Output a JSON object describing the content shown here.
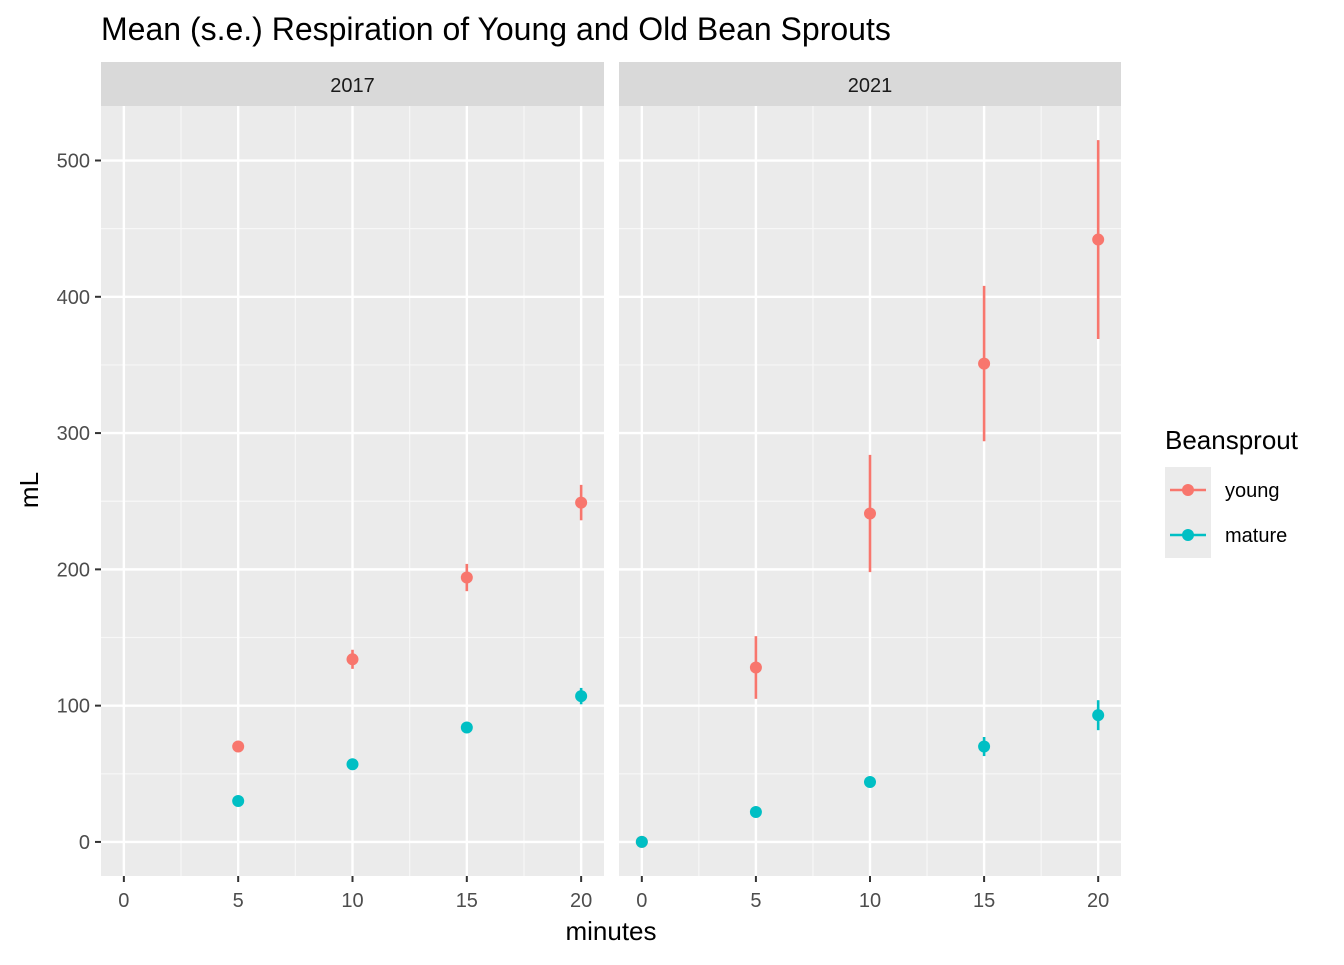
{
  "chart_data": {
    "type": "scatter",
    "title": "Mean (s.e.) Respiration of Young and Old Bean Sprouts",
    "xlabel": "minutes",
    "ylabel": "mL",
    "xlim": [
      -1,
      21
    ],
    "ylim": [
      -25,
      540
    ],
    "x_ticks": [
      0,
      5,
      10,
      15,
      20
    ],
    "y_ticks": [
      0,
      100,
      200,
      300,
      400,
      500
    ],
    "grid": true,
    "legend": {
      "title": "Beansprout",
      "position": "right",
      "entries": [
        "young",
        "mature"
      ]
    },
    "colors": {
      "young": "#F8766D",
      "mature": "#00BFC4"
    },
    "panels": [
      {
        "label": "2017",
        "series": [
          {
            "name": "young",
            "x": [
              5,
              10,
              15,
              20
            ],
            "y": [
              70,
              134,
              194,
              249
            ],
            "se": [
              2,
              7,
              10,
              13
            ]
          },
          {
            "name": "mature",
            "x": [
              5,
              10,
              15,
              20
            ],
            "y": [
              30,
              57,
              84,
              107
            ],
            "se": [
              1,
              2,
              4,
              6
            ]
          }
        ]
      },
      {
        "label": "2021",
        "series": [
          {
            "name": "young",
            "x": [
              0,
              5,
              10,
              15,
              20
            ],
            "y": [
              0,
              128,
              241,
              351,
              442
            ],
            "se": [
              0,
              23,
              43,
              57,
              73
            ]
          },
          {
            "name": "mature",
            "x": [
              0,
              5,
              10,
              15,
              20
            ],
            "y": [
              0,
              22,
              44,
              70,
              93
            ],
            "se": [
              0,
              2,
              3,
              7,
              11
            ]
          }
        ]
      }
    ]
  }
}
